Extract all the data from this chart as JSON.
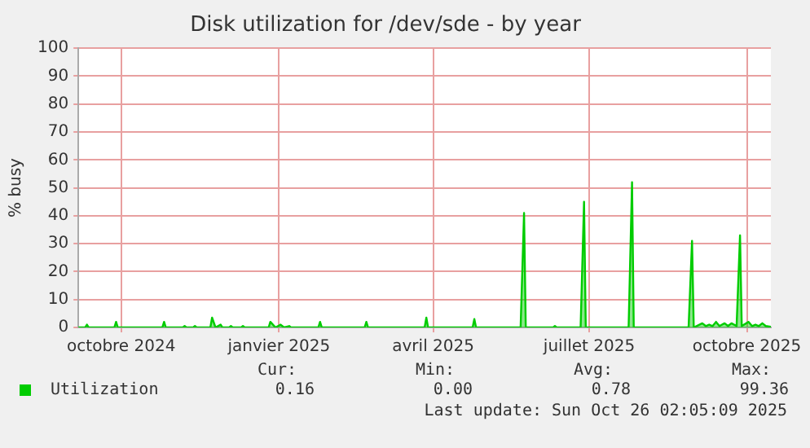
{
  "chart_data": {
    "type": "area",
    "title": "Disk utilization for /dev/sde - by year",
    "ylabel": "% busy",
    "x": [
      "2024-09-06",
      "2024-09-10",
      "2024-09-11",
      "2024-09-12",
      "2024-09-27",
      "2024-09-28",
      "2024-09-29",
      "2024-10-25",
      "2024-10-26",
      "2024-10-27",
      "2024-11-06",
      "2024-11-07",
      "2024-11-08",
      "2024-11-12",
      "2024-11-13",
      "2024-11-14",
      "2024-11-22",
      "2024-11-23",
      "2024-11-25",
      "2024-11-28",
      "2024-11-29",
      "2024-12-03",
      "2024-12-04",
      "2024-12-05",
      "2024-12-10",
      "2024-12-11",
      "2024-12-12",
      "2024-12-26",
      "2024-12-27",
      "2024-12-30",
      "2025-01-02",
      "2025-01-04",
      "2025-01-07",
      "2025-01-08",
      "2025-01-24",
      "2025-01-25",
      "2025-01-26",
      "2025-02-20",
      "2025-02-21",
      "2025-02-22",
      "2025-03-27",
      "2025-03-28",
      "2025-03-29",
      "2025-04-24",
      "2025-04-25",
      "2025-04-26",
      "2025-05-22",
      "2025-05-24",
      "2025-05-25",
      "2025-06-10",
      "2025-06-11",
      "2025-06-12",
      "2025-06-26",
      "2025-06-28",
      "2025-06-29",
      "2025-07-24",
      "2025-07-26",
      "2025-07-27",
      "2025-08-28",
      "2025-08-30",
      "2025-08-31",
      "2025-09-05",
      "2025-09-07",
      "2025-09-09",
      "2025-09-11",
      "2025-09-13",
      "2025-09-15",
      "2025-09-18",
      "2025-09-20",
      "2025-09-22",
      "2025-09-25",
      "2025-09-27",
      "2025-09-28",
      "2025-10-02",
      "2025-10-04",
      "2025-10-06",
      "2025-10-08",
      "2025-10-10",
      "2025-10-12",
      "2025-10-15"
    ],
    "series": [
      {
        "name": "Utilization",
        "color": "#00cc00",
        "values": [
          0,
          0,
          1,
          0,
          0,
          2,
          0,
          0,
          2,
          0,
          0,
          0.5,
          0,
          0,
          0.5,
          0,
          0,
          3.5,
          0,
          1,
          0,
          0,
          0.5,
          0,
          0,
          0.5,
          0,
          0,
          2,
          0,
          1,
          0,
          0.5,
          0,
          0,
          2,
          0,
          0,
          2,
          0,
          0,
          3.5,
          0,
          0,
          3,
          0,
          0,
          41,
          0,
          0,
          0.5,
          0,
          0,
          45,
          0,
          0,
          52,
          0,
          0,
          31,
          0,
          1.5,
          0.5,
          1,
          0.5,
          2,
          0.5,
          1.5,
          0.5,
          1.5,
          0.5,
          33,
          0.5,
          2,
          0.5,
          1,
          0.5,
          1.5,
          0.5,
          0.2
        ]
      }
    ],
    "xlim": [
      "2024-09-06",
      "2025-10-15"
    ],
    "xticks": [
      {
        "value": "2024-10-01",
        "label": "octobre 2024"
      },
      {
        "value": "2025-01-01",
        "label": "janvier 2025"
      },
      {
        "value": "2025-04-01",
        "label": "avril 2025"
      },
      {
        "value": "2025-07-01",
        "label": "juillet 2025"
      },
      {
        "value": "2025-10-01",
        "label": "octobre 2025"
      }
    ],
    "ylim": [
      0,
      100
    ],
    "yticks": [
      0,
      10,
      20,
      30,
      40,
      50,
      60,
      70,
      80,
      90,
      100
    ],
    "grid": true,
    "legend": "bottom left",
    "annotations": [
      "Cur:",
      "Min:",
      "Avg:",
      "Max:",
      "0.16",
      "0.00",
      "0.78",
      "99.36",
      "Last update: Sun Oct 26 02:05:09 2025"
    ]
  }
}
